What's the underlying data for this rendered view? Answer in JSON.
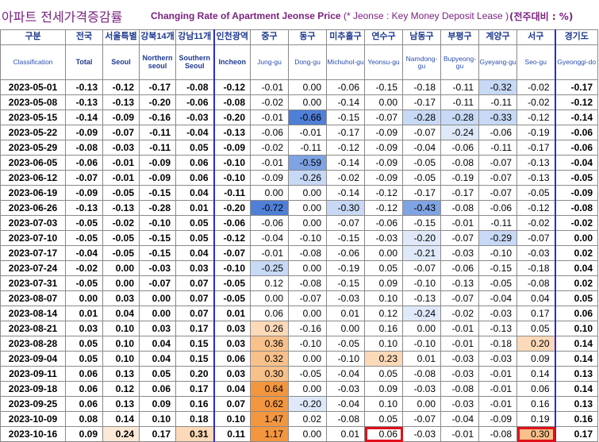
{
  "title": {
    "korean": "아파트 전세가격증감률",
    "english": "Changing Rate of Apartment Jeonse Price",
    "note": "(* Jeonse : Key Money Deposit Lease )",
    "unit": "(전주대비 : %)"
  },
  "header": {
    "classification_ko": "구분",
    "classification_en": "Classification",
    "columns": [
      {
        "ko": "전국",
        "en": "Total"
      },
      {
        "ko": "서울특별",
        "en": "Seoul"
      },
      {
        "ko": "강북14개",
        "en": "Northern seoul"
      },
      {
        "ko": "강남11개",
        "en": "Southern Seoul"
      },
      {
        "ko": "인천광역",
        "en": "Incheon"
      },
      {
        "ko": "중구",
        "en": "Jung-gu"
      },
      {
        "ko": "동구",
        "en": "Dong-gu"
      },
      {
        "ko": "미추홀구",
        "en": "Michuhol-gu"
      },
      {
        "ko": "연수구",
        "en": "Yeonsu-gu"
      },
      {
        "ko": "남동구",
        "en": "Namdong-gu"
      },
      {
        "ko": "부평구",
        "en": "Bupyeong-gu"
      },
      {
        "ko": "계양구",
        "en": "Gyeyang-gu"
      },
      {
        "ko": "서구",
        "en": "Seo-gu"
      },
      {
        "ko": "경기도",
        "en": "Gyeonggi-do"
      }
    ]
  },
  "colors": {
    "title": "#7a2280",
    "header_text": "#1f3a8f",
    "neg_strong": "#4f7fd6",
    "neg_mid": "#7fa3e3",
    "neg_light": "#c7d9f5",
    "neg_pale": "#dfe9f9",
    "pos_strong": "#f2963f",
    "pos_mid": "#f8c08a",
    "pos_light": "#fcd9b8",
    "pos_pale": "#fde9d8",
    "highlight_box": "#e0101a"
  },
  "chart_data": {
    "type": "table",
    "categories": [
      "2023-05-01",
      "2023-05-08",
      "2023-05-15",
      "2023-05-22",
      "2023-05-29",
      "2023-06-05",
      "2023-06-12",
      "2023-06-19",
      "2023-06-26",
      "2023-07-03",
      "2023-07-10",
      "2023-07-17",
      "2023-07-24",
      "2023-07-31",
      "2023-08-07",
      "2023-08-14",
      "2023-08-21",
      "2023-08-28",
      "2023-09-04",
      "2023-09-11",
      "2023-09-18",
      "2023-09-25",
      "2023-10-09",
      "2023-10-16"
    ],
    "rows": [
      {
        "date": "2023-05-01",
        "values": [
          "-0.13",
          "-0.12",
          "-0.17",
          "-0.08",
          "-0.12",
          "-0.01",
          "0.00",
          "-0.06",
          "-0.15",
          "-0.18",
          "-0.11",
          "-0.32",
          "-0.02",
          "-0.17"
        ]
      },
      {
        "date": "2023-05-08",
        "values": [
          "-0.13",
          "-0.13",
          "-0.20",
          "-0.06",
          "-0.08",
          "-0.02",
          "0.00",
          "-0.14",
          "0.00",
          "-0.17",
          "-0.11",
          "-0.11",
          "-0.02",
          "-0.12"
        ]
      },
      {
        "date": "2023-05-15",
        "values": [
          "-0.14",
          "-0.09",
          "-0.16",
          "-0.03",
          "-0.20",
          "-0.01",
          "-0.66",
          "-0.15",
          "-0.07",
          "-0.28",
          "-0.28",
          "-0.33",
          "-0.12",
          "-0.14"
        ]
      },
      {
        "date": "2023-05-22",
        "values": [
          "-0.09",
          "-0.07",
          "-0.11",
          "-0.04",
          "-0.13",
          "-0.06",
          "-0.01",
          "-0.17",
          "-0.09",
          "-0.07",
          "-0.24",
          "-0.06",
          "-0.19",
          "-0.06"
        ]
      },
      {
        "date": "2023-05-29",
        "values": [
          "-0.08",
          "-0.03",
          "-0.11",
          "0.05",
          "-0.09",
          "-0.02",
          "-0.11",
          "-0.12",
          "-0.09",
          "-0.04",
          "-0.06",
          "-0.11",
          "-0.17",
          "-0.06"
        ]
      },
      {
        "date": "2023-06-05",
        "values": [
          "-0.06",
          "-0.01",
          "-0.09",
          "0.06",
          "-0.10",
          "-0.01",
          "-0.59",
          "-0.14",
          "-0.09",
          "-0.05",
          "-0.08",
          "-0.07",
          "-0.13",
          "-0.04"
        ]
      },
      {
        "date": "2023-06-12",
        "values": [
          "-0.07",
          "-0.01",
          "-0.09",
          "0.06",
          "-0.10",
          "-0.09",
          "-0.26",
          "-0.02",
          "-0.09",
          "-0.05",
          "-0.19",
          "-0.07",
          "-0.13",
          "-0.05"
        ]
      },
      {
        "date": "2023-06-19",
        "values": [
          "-0.09",
          "-0.05",
          "-0.15",
          "0.04",
          "-0.11",
          "0.00",
          "0.00",
          "-0.14",
          "-0.12",
          "-0.17",
          "-0.17",
          "-0.07",
          "-0.05",
          "-0.09"
        ]
      },
      {
        "date": "2023-06-26",
        "values": [
          "-0.13",
          "-0.13",
          "-0.28",
          "0.01",
          "-0.20",
          "-0.72",
          "0.00",
          "-0.30",
          "-0.12",
          "-0.43",
          "-0.08",
          "-0.06",
          "-0.12",
          "-0.08"
        ]
      },
      {
        "date": "2023-07-03",
        "values": [
          "-0.05",
          "-0.02",
          "-0.10",
          "0.05",
          "-0.06",
          "-0.06",
          "0.00",
          "-0.07",
          "-0.06",
          "-0.15",
          "-0.01",
          "-0.11",
          "-0.02",
          "-0.02"
        ]
      },
      {
        "date": "2023-07-10",
        "values": [
          "-0.05",
          "-0.05",
          "-0.15",
          "0.05",
          "-0.12",
          "-0.04",
          "-0.10",
          "-0.15",
          "-0.03",
          "-0.20",
          "-0.07",
          "-0.29",
          "-0.07",
          "0.00"
        ]
      },
      {
        "date": "2023-07-17",
        "values": [
          "-0.04",
          "-0.05",
          "-0.15",
          "0.04",
          "-0.07",
          "-0.01",
          "-0.08",
          "-0.06",
          "0.00",
          "-0.21",
          "-0.03",
          "-0.10",
          "-0.03",
          "0.02"
        ]
      },
      {
        "date": "2023-07-24",
        "values": [
          "-0.02",
          "0.00",
          "-0.03",
          "0.03",
          "-0.10",
          "-0.25",
          "0.00",
          "-0.19",
          "0.05",
          "-0.07",
          "-0.06",
          "-0.15",
          "-0.18",
          "0.04"
        ]
      },
      {
        "date": "2023-07-31",
        "values": [
          "-0.05",
          "0.00",
          "-0.07",
          "0.07",
          "-0.05",
          "0.12",
          "-0.08",
          "-0.15",
          "0.09",
          "-0.10",
          "-0.13",
          "-0.05",
          "-0.08",
          "0.02"
        ]
      },
      {
        "date": "2023-08-07",
        "values": [
          "0.00",
          "0.03",
          "0.00",
          "0.07",
          "-0.05",
          "0.00",
          "-0.07",
          "-0.03",
          "0.10",
          "-0.13",
          "-0.07",
          "-0.04",
          "0.04",
          "0.05"
        ]
      },
      {
        "date": "2023-08-14",
        "values": [
          "0.01",
          "0.04",
          "0.00",
          "0.07",
          "0.01",
          "0.06",
          "0.00",
          "0.01",
          "0.12",
          "-0.24",
          "-0.02",
          "-0.03",
          "0.17",
          "0.06"
        ]
      },
      {
        "date": "2023-08-21",
        "values": [
          "0.03",
          "0.10",
          "0.03",
          "0.17",
          "0.03",
          "0.26",
          "-0.16",
          "0.00",
          "0.16",
          "0.00",
          "-0.01",
          "-0.13",
          "0.05",
          "0.10"
        ]
      },
      {
        "date": "2023-08-28",
        "values": [
          "0.05",
          "0.10",
          "0.04",
          "0.15",
          "0.03",
          "0.36",
          "-0.10",
          "-0.05",
          "0.10",
          "-0.10",
          "-0.01",
          "-0.18",
          "0.20",
          "0.14"
        ]
      },
      {
        "date": "2023-09-04",
        "values": [
          "0.05",
          "0.10",
          "0.04",
          "0.15",
          "0.06",
          "0.32",
          "0.00",
          "-0.10",
          "0.23",
          "0.01",
          "-0.03",
          "-0.03",
          "0.09",
          "0.14"
        ]
      },
      {
        "date": "2023-09-11",
        "values": [
          "0.06",
          "0.13",
          "0.05",
          "0.20",
          "0.03",
          "0.30",
          "-0.05",
          "-0.04",
          "0.05",
          "-0.08",
          "-0.03",
          "-0.01",
          "0.14",
          "0.13"
        ]
      },
      {
        "date": "2023-09-18",
        "values": [
          "0.06",
          "0.12",
          "0.06",
          "0.17",
          "0.04",
          "0.64",
          "0.00",
          "-0.03",
          "0.09",
          "-0.03",
          "-0.08",
          "-0.01",
          "0.06",
          "0.14"
        ]
      },
      {
        "date": "2023-09-25",
        "values": [
          "0.06",
          "0.13",
          "0.09",
          "0.16",
          "0.07",
          "0.62",
          "-0.20",
          "-0.04",
          "0.10",
          "0.00",
          "-0.03",
          "-0.01",
          "0.16",
          "0.13"
        ]
      },
      {
        "date": "2023-10-09",
        "values": [
          "0.08",
          "0.14",
          "0.10",
          "0.18",
          "0.10",
          "1.47",
          "0.02",
          "-0.08",
          "0.05",
          "-0.07",
          "-0.04",
          "-0.09",
          "0.19",
          "0.16"
        ]
      },
      {
        "date": "2023-10-16",
        "values": [
          "0.09",
          "0.24",
          "0.17",
          "0.31",
          "0.11",
          "1.17",
          "0.00",
          "0.01",
          "0.06",
          "-0.03",
          "-0.01",
          "-0.08",
          "0.30",
          "0.17"
        ]
      }
    ]
  }
}
